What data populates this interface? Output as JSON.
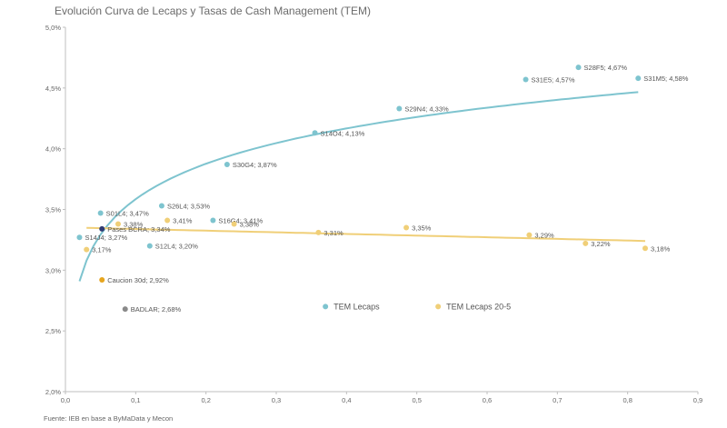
{
  "chart_data": {
    "type": "scatter",
    "title": "Evolución Curva de Lecaps y Tasas de Cash Management (TEM)",
    "source": "Fuente: IEB en base a ByMaData y Mecon",
    "xlabel": "",
    "ylabel": "",
    "xlim": [
      0.0,
      0.9
    ],
    "ylim": [
      2.0,
      5.0
    ],
    "x_ticks": [
      "0,0",
      "0,1",
      "0,2",
      "0,3",
      "0,4",
      "0,5",
      "0,6",
      "0,7",
      "0,8",
      "0,9"
    ],
    "y_ticks": [
      "2,0%",
      "2,5%",
      "3,0%",
      "3,5%",
      "4,0%",
      "4,5%",
      "5,0%"
    ],
    "grid": false,
    "legend_position": "center",
    "colors": {
      "tem_lecaps": "#7ec4cf",
      "tem_20_5": "#f0cf78",
      "caucion": "#e6a51e",
      "pases": "#2f3a73",
      "badlar": "#8a8a8a"
    },
    "series": [
      {
        "name": "TEM Lecaps",
        "color": "#7ec4cf",
        "points": [
          {
            "x": 0.02,
            "y": 3.27,
            "label": "S14J4; 3,27%"
          },
          {
            "x": 0.05,
            "y": 3.47,
            "label": "S01L4; 3,47%"
          },
          {
            "x": 0.12,
            "y": 3.2,
            "label": "S12L4; 3,20%"
          },
          {
            "x": 0.137,
            "y": 3.53,
            "label": "S26L4; 3,53%"
          },
          {
            "x": 0.21,
            "y": 3.41,
            "label": "S16G4; 3,41%"
          },
          {
            "x": 0.23,
            "y": 3.87,
            "label": "S30G4; 3,87%"
          },
          {
            "x": 0.355,
            "y": 4.13,
            "label": "S14O4; 4,13%"
          },
          {
            "x": 0.475,
            "y": 4.33,
            "label": "S29N4; 4,33%"
          },
          {
            "x": 0.655,
            "y": 4.57,
            "label": "S31E5; 4,57%"
          },
          {
            "x": 0.73,
            "y": 4.67,
            "label": "S28F5; 4,67%"
          },
          {
            "x": 0.815,
            "y": 4.58,
            "label": "S31M5; 4,58%"
          }
        ]
      },
      {
        "name": "TEM Lecaps 20-5",
        "color": "#f0cf78",
        "points": [
          {
            "x": 0.03,
            "y": 3.17,
            "label": "3,17%"
          },
          {
            "x": 0.075,
            "y": 3.38,
            "label": "3,38%"
          },
          {
            "x": 0.145,
            "y": 3.41,
            "label": "3,41%"
          },
          {
            "x": 0.24,
            "y": 3.38,
            "label": "3,38%"
          },
          {
            "x": 0.36,
            "y": 3.31,
            "label": "3,31%"
          },
          {
            "x": 0.485,
            "y": 3.35,
            "label": "3,35%"
          },
          {
            "x": 0.66,
            "y": 3.29,
            "label": "3,29%"
          },
          {
            "x": 0.74,
            "y": 3.22,
            "label": "3,22%"
          },
          {
            "x": 0.825,
            "y": 3.18,
            "label": "3,18%"
          }
        ]
      },
      {
        "name": "Caucion",
        "color": "#e6a51e",
        "points": [
          {
            "x": 0.052,
            "y": 2.92,
            "label": "Caucion 30d; 2,92%"
          }
        ]
      },
      {
        "name": "Pases",
        "color": "#2f3a73",
        "points": [
          {
            "x": 0.052,
            "y": 3.34,
            "label": "Pases BCRA; 3,34%"
          }
        ]
      },
      {
        "name": "BADLAR",
        "color": "#8a8a8a",
        "points": [
          {
            "x": 0.085,
            "y": 2.68,
            "label": "BADLAR; 2,68%"
          }
        ]
      }
    ],
    "trendlines": [
      {
        "series": "TEM Lecaps",
        "color": "#7ec4cf",
        "kind": "logarithmic"
      },
      {
        "series": "TEM Lecaps 20-5",
        "color": "#f0cf78",
        "kind": "linear"
      }
    ],
    "legend": [
      {
        "label": "TEM Lecaps",
        "color": "#7ec4cf"
      },
      {
        "label": "TEM Lecaps 20-5",
        "color": "#f0cf78"
      }
    ]
  }
}
